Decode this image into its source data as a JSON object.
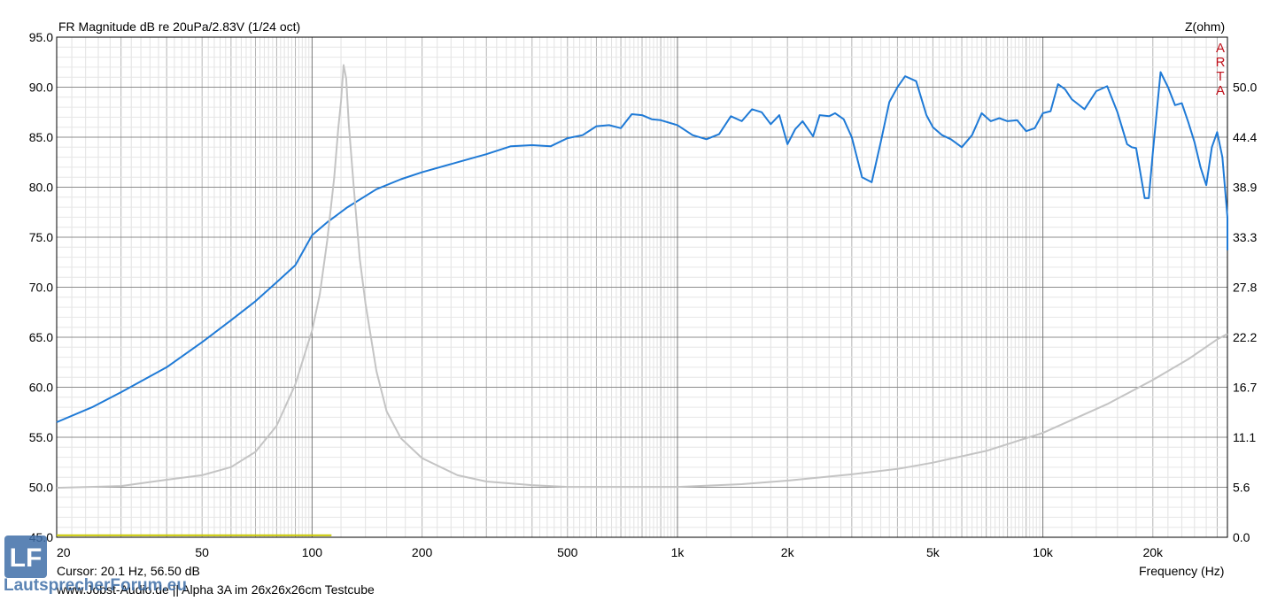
{
  "chart_data": {
    "type": "line",
    "title": "FR Magnitude dB re 20uPa/2.83V (1/24 oct)",
    "xlabel": "Frequency (Hz)",
    "ylabel": "",
    "y2label": "Z(ohm)",
    "xscale": "log",
    "xlim": [
      20,
      32000
    ],
    "ylim": [
      45,
      95
    ],
    "y2lim": [
      0,
      55.6
    ],
    "grid": true,
    "x_tick_labels": [
      "20",
      "50",
      "100",
      "200",
      "500",
      "1k",
      "2k",
      "5k",
      "10k",
      "20k"
    ],
    "x_tick_values": [
      20,
      50,
      100,
      200,
      500,
      1000,
      2000,
      5000,
      10000,
      20000
    ],
    "y_tick_labels": [
      "45.0",
      "50.0",
      "55.0",
      "60.0",
      "65.0",
      "70.0",
      "75.0",
      "80.0",
      "85.0",
      "90.0",
      "95.0"
    ],
    "y2_tick_labels": [
      "0.0",
      "5.6",
      "11.1",
      "16.7",
      "22.2",
      "27.8",
      "33.3",
      "38.9",
      "44.4",
      "50.0"
    ],
    "series": [
      {
        "axis": "left",
        "color": "#1f7ad6",
        "points": [
          [
            20,
            56.5
          ],
          [
            25,
            58
          ],
          [
            30,
            59.5
          ],
          [
            40,
            62
          ],
          [
            50,
            64.5
          ],
          [
            60,
            66.7
          ],
          [
            70,
            68.6
          ],
          [
            80,
            70.5
          ],
          [
            90,
            72.2
          ],
          [
            100,
            75.2
          ],
          [
            110,
            76.5
          ],
          [
            125,
            78
          ],
          [
            150,
            79.8
          ],
          [
            175,
            80.8
          ],
          [
            200,
            81.5
          ],
          [
            250,
            82.5
          ],
          [
            300,
            83.3
          ],
          [
            350,
            84.1
          ],
          [
            400,
            84.2
          ],
          [
            450,
            84.1
          ],
          [
            500,
            84.9
          ],
          [
            550,
            85.2
          ],
          [
            600,
            86.1
          ],
          [
            650,
            86.2
          ],
          [
            700,
            85.9
          ],
          [
            750,
            87.3
          ],
          [
            800,
            87.2
          ],
          [
            850,
            86.8
          ],
          [
            900,
            86.7
          ],
          [
            1000,
            86.2
          ],
          [
            1100,
            85.2
          ],
          [
            1200,
            84.8
          ],
          [
            1300,
            85.3
          ],
          [
            1400,
            87.1
          ],
          [
            1500,
            86.6
          ],
          [
            1600,
            87.8
          ],
          [
            1700,
            87.5
          ],
          [
            1800,
            86.3
          ],
          [
            1900,
            87.2
          ],
          [
            2000,
            84.3
          ],
          [
            2100,
            85.8
          ],
          [
            2200,
            86.6
          ],
          [
            2350,
            85.1
          ],
          [
            2450,
            87.2
          ],
          [
            2600,
            87.1
          ],
          [
            2700,
            87.4
          ],
          [
            2850,
            86.8
          ],
          [
            3000,
            85.0
          ],
          [
            3200,
            81.0
          ],
          [
            3400,
            80.5
          ],
          [
            3600,
            84.5
          ],
          [
            3800,
            88.5
          ],
          [
            4000,
            90.0
          ],
          [
            4200,
            91.1
          ],
          [
            4500,
            90.6
          ],
          [
            4800,
            87.2
          ],
          [
            5000,
            86.0
          ],
          [
            5300,
            85.2
          ],
          [
            5600,
            84.8
          ],
          [
            6000,
            84.0
          ],
          [
            6400,
            85.2
          ],
          [
            6800,
            87.4
          ],
          [
            7200,
            86.6
          ],
          [
            7600,
            86.9
          ],
          [
            8000,
            86.6
          ],
          [
            8500,
            86.7
          ],
          [
            9000,
            85.6
          ],
          [
            9500,
            85.9
          ],
          [
            10000,
            87.4
          ],
          [
            10500,
            87.6
          ],
          [
            11000,
            90.3
          ],
          [
            11500,
            89.8
          ],
          [
            12000,
            88.8
          ],
          [
            13000,
            87.8
          ],
          [
            14000,
            89.6
          ],
          [
            15000,
            90.1
          ],
          [
            16000,
            87.5
          ],
          [
            17000,
            84.3
          ],
          [
            17500,
            84.0
          ],
          [
            18000,
            83.9
          ],
          [
            19000,
            78.9
          ],
          [
            19500,
            78.9
          ],
          [
            20000,
            83.5
          ],
          [
            21000,
            91.5
          ],
          [
            22000,
            90.0
          ],
          [
            23000,
            88.2
          ],
          [
            24000,
            88.4
          ],
          [
            25000,
            86.5
          ],
          [
            26000,
            84.5
          ],
          [
            27000,
            82.0
          ],
          [
            28000,
            80.2
          ],
          [
            29000,
            84.0
          ],
          [
            30000,
            85.5
          ],
          [
            31000,
            83.0
          ],
          [
            32000,
            77.0
          ],
          [
            32500,
            73.7
          ]
        ]
      },
      {
        "axis": "right",
        "color": "#c4c4c4",
        "points": [
          [
            20,
            5.5
          ],
          [
            30,
            5.7
          ],
          [
            40,
            6.4
          ],
          [
            50,
            6.9
          ],
          [
            60,
            7.8
          ],
          [
            70,
            9.5
          ],
          [
            80,
            12.4
          ],
          [
            90,
            17.0
          ],
          [
            100,
            23.0
          ],
          [
            105,
            27.0
          ],
          [
            110,
            33.0
          ],
          [
            115,
            40.0
          ],
          [
            118,
            45.5
          ],
          [
            120,
            48.5
          ],
          [
            122,
            52.5
          ],
          [
            124,
            51.0
          ],
          [
            126,
            46.0
          ],
          [
            130,
            39.0
          ],
          [
            135,
            31.0
          ],
          [
            140,
            26.0
          ],
          [
            150,
            18.5
          ],
          [
            160,
            14.0
          ],
          [
            175,
            11.0
          ],
          [
            200,
            8.8
          ],
          [
            250,
            6.9
          ],
          [
            300,
            6.2
          ],
          [
            400,
            5.8
          ],
          [
            500,
            5.6
          ],
          [
            700,
            5.6
          ],
          [
            1000,
            5.6
          ],
          [
            1500,
            5.9
          ],
          [
            2000,
            6.3
          ],
          [
            3000,
            7.0
          ],
          [
            4000,
            7.6
          ],
          [
            5000,
            8.3
          ],
          [
            7000,
            9.6
          ],
          [
            10000,
            11.6
          ],
          [
            15000,
            14.8
          ],
          [
            20000,
            17.5
          ],
          [
            25000,
            19.8
          ],
          [
            30000,
            22.0
          ],
          [
            32000,
            22.6
          ]
        ]
      },
      {
        "axis": "left",
        "color": "#c8c800",
        "points": [
          [
            20,
            45.2
          ],
          [
            113,
            45.2
          ]
        ]
      }
    ],
    "annotations": [
      "A",
      "R",
      "T",
      "A"
    ]
  },
  "cursor_text": "Cursor: 20.1 Hz, 56.50 dB",
  "footer_text": "www.Jobst-Audio.de || Alpha 3A im 26x26x26cm Testcube",
  "watermark": {
    "text": "LautsprecherForum.eu",
    "logo_letters": "LF",
    "color": "#3f6fa8"
  }
}
